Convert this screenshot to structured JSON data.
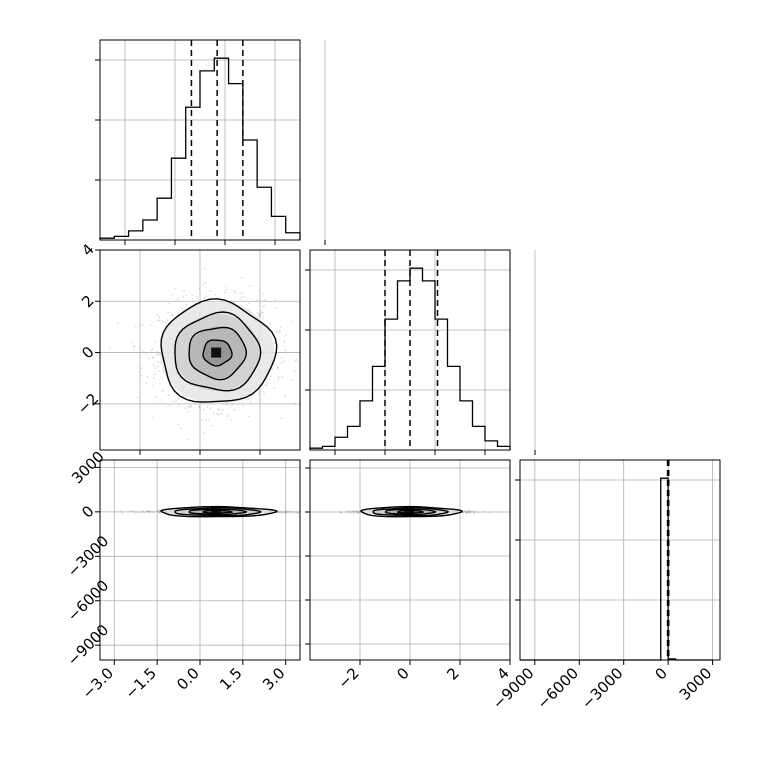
{
  "chart_data": {
    "type": "corner",
    "variables": [
      "",
      "",
      ""
    ],
    "panels": [
      {
        "id": "hist-0",
        "type": "histogram",
        "variable": 0,
        "xlim": [
          -3.5,
          3.5
        ],
        "bin_edges": [
          -3.5,
          -3.0,
          -2.5,
          -2.0,
          -1.5,
          -1.0,
          -0.5,
          0.0,
          0.5,
          1.0,
          1.5,
          2.0,
          2.5,
          3.0,
          3.5
        ],
        "counts": [
          0.01,
          0.02,
          0.05,
          0.11,
          0.23,
          0.45,
          0.73,
          0.93,
          1.0,
          0.86,
          0.55,
          0.29,
          0.13,
          0.04
        ],
        "quantiles": [
          -0.3,
          0.6,
          1.5
        ],
        "tick_labels_x": [],
        "tick_labels_y": []
      },
      {
        "id": "hist-1",
        "type": "histogram",
        "variable": 1,
        "xlim": [
          -4,
          4
        ],
        "bin_edges": [
          -4.0,
          -3.5,
          -3.0,
          -2.5,
          -2.0,
          -1.5,
          -1.0,
          -0.5,
          0.0,
          0.5,
          1.0,
          1.5,
          2.0,
          2.5,
          3.0,
          3.5,
          4.0
        ],
        "counts": [
          0.01,
          0.02,
          0.07,
          0.13,
          0.27,
          0.46,
          0.72,
          0.93,
          1.0,
          0.93,
          0.72,
          0.46,
          0.27,
          0.13,
          0.05,
          0.02
        ],
        "quantiles": [
          -1.0,
          0.0,
          1.1
        ],
        "tick_labels_x": [],
        "tick_labels_y": []
      },
      {
        "id": "hist-2",
        "type": "histogram",
        "variable": 2,
        "xlim": [
          -10000,
          3500
        ],
        "bin_edges": [
          -10000,
          -9500,
          -9000,
          -8500,
          -8000,
          -7500,
          -7000,
          -6500,
          -6000,
          -5500,
          -5000,
          -4500,
          -4000,
          -3500,
          -3000,
          -2500,
          -2000,
          -1500,
          -1000,
          -500,
          0,
          500,
          1000,
          1500,
          2000,
          2500,
          3000
        ],
        "counts": [
          0,
          0,
          0,
          0,
          0,
          0,
          0,
          0,
          0,
          0,
          0,
          0,
          0,
          0,
          0,
          0,
          0,
          0,
          0,
          1.0,
          0.006,
          0,
          0,
          0,
          0,
          0
        ],
        "quantiles": [
          -40,
          0,
          40
        ],
        "tick_labels_x": [
          "−9000",
          "−6000",
          "−3000",
          "0",
          "3000"
        ],
        "tick_values_x": [
          -9000,
          -6000,
          -3000,
          0,
          3000
        ],
        "tick_labels_y": []
      },
      {
        "id": "scatter-1-0",
        "type": "density-scatter",
        "x_variable": 0,
        "y_variable": 1,
        "xlim": [
          -3.5,
          3.5
        ],
        "ylim": [
          -3.8,
          4.0
        ],
        "center": [
          0.6,
          0.0
        ],
        "spread": [
          1.0,
          1.0
        ],
        "contour_levels_sigma": [
          0.5,
          1.0,
          1.5,
          2.0
        ],
        "tick_labels_x": [],
        "tick_labels_y": [
          "−2",
          "0",
          "2",
          "4"
        ],
        "tick_values_y": [
          -2,
          0,
          2,
          4
        ]
      },
      {
        "id": "scatter-2-0",
        "type": "density-scatter",
        "x_variable": 0,
        "y_variable": 2,
        "xlim": [
          -3.5,
          3.5
        ],
        "ylim": [
          -10000,
          3500
        ],
        "center": [
          0.6,
          0
        ],
        "spread": [
          1.0,
          40
        ],
        "contour_levels_sigma": [
          0.5,
          1.0,
          1.5,
          2.0
        ],
        "tick_labels_x": [
          "−3.0",
          "−1.5",
          "0.0",
          "1.5",
          "3.0"
        ],
        "tick_values_x": [
          -3.0,
          -1.5,
          0.0,
          1.5,
          3.0
        ],
        "tick_labels_y": [
          "−9000",
          "−6000",
          "−3000",
          "0",
          "3000"
        ],
        "tick_values_y": [
          -9000,
          -6000,
          -3000,
          0,
          3000
        ]
      },
      {
        "id": "scatter-2-1",
        "type": "density-scatter",
        "x_variable": 1,
        "y_variable": 2,
        "xlim": [
          -4,
          4
        ],
        "ylim": [
          -10000,
          3500
        ],
        "center": [
          0.0,
          0
        ],
        "spread": [
          1.0,
          40
        ],
        "contour_levels_sigma": [
          0.5,
          1.0,
          1.5,
          2.0
        ],
        "tick_labels_x": [
          "−2",
          "0",
          "2",
          "4"
        ],
        "tick_values_x": [
          -2,
          0,
          2,
          4
        ],
        "tick_labels_y": []
      }
    ],
    "grid": true,
    "colors": {
      "line": "#000000",
      "grid": "#b0b0b0",
      "points": "#9a9a9a"
    }
  }
}
